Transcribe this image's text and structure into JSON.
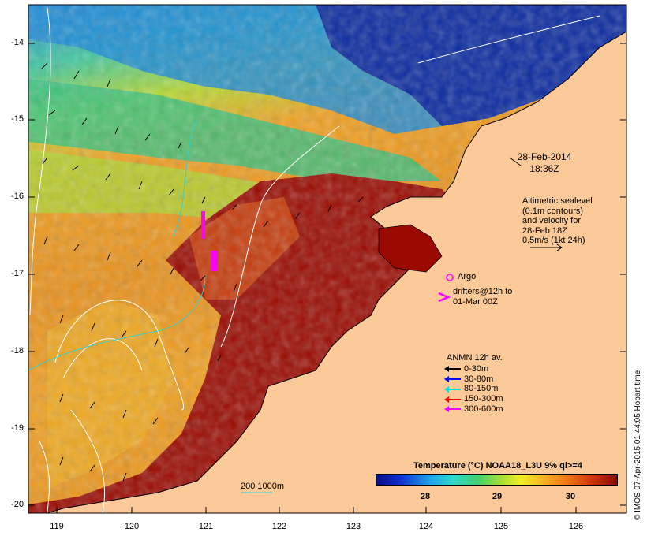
{
  "map": {
    "y_ticks": [
      "-14",
      "-15",
      "-16",
      "-17",
      "-18",
      "-19",
      "-20"
    ],
    "x_ticks": [
      "119",
      "120",
      "121",
      "122",
      "123",
      "124",
      "125",
      "126"
    ],
    "date_line1": "28-Feb-2014",
    "date_line2": "18:36Z",
    "altimetry": {
      "line1": "Altimetric sealevel",
      "line2": "(0.1m contours)",
      "line3": "and velocity for",
      "line4": "28-Feb 18Z",
      "line5": "0.5m/s (1kt 24h)"
    },
    "argo_label": "Argo",
    "drifters_line1": "drifters@12h to",
    "drifters_line2": "01-Mar 00Z",
    "anmn": {
      "title": "ANMN 12h av.",
      "items": [
        {
          "label": "0-30m",
          "color": "#000000"
        },
        {
          "label": "30-80m",
          "color": "#0000ff"
        },
        {
          "label": "80-150m",
          "color": "#00e0e0"
        },
        {
          "label": "150-300m",
          "color": "#ff0000"
        },
        {
          "label": "300-600m",
          "color": "#ff00ff"
        }
      ]
    },
    "colorbar": {
      "title": "Temperature (°C) NOAA18_L3U 9% ql>=4",
      "ticks": [
        "28",
        "29",
        "30"
      ]
    },
    "scale_label": "200  1000m",
    "credit": "© IMOS 07-Apr-2015 01:44:05 Hobart time",
    "colors": {
      "land": "#fcc999",
      "warm": "#9a0a00",
      "cold": "#0a1e9a",
      "contour": "#ffffff"
    }
  }
}
